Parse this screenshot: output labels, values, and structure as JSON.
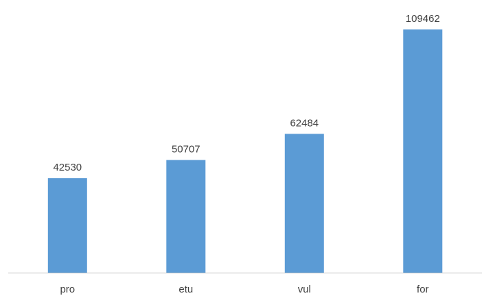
{
  "chart_data": {
    "type": "bar",
    "categories": [
      "pro",
      "etu",
      "vul",
      "for"
    ],
    "values": [
      42530,
      50707,
      62484,
      109462
    ],
    "title": "",
    "xlabel": "",
    "ylabel": "",
    "ylim": [
      0,
      109462
    ],
    "grid": false,
    "legend": "none",
    "data_labels": true,
    "bar_color": "#5B9BD5",
    "axis_color": "#BFBFBF",
    "text_color": "#404040"
  }
}
